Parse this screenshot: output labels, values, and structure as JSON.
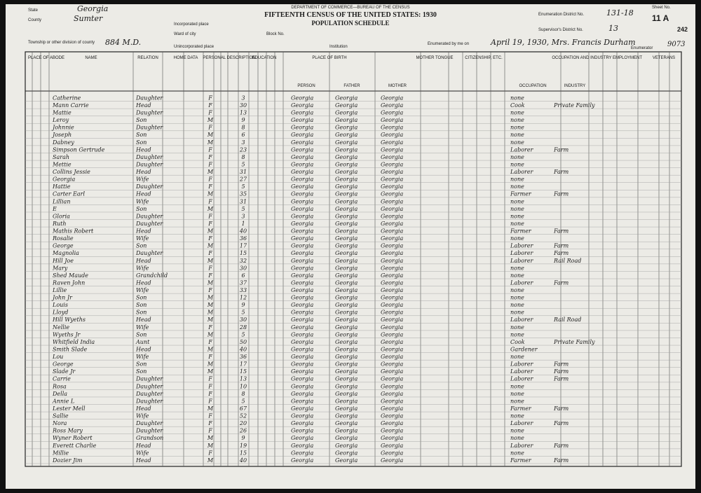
{
  "header": {
    "dept": "DEPARTMENT OF COMMERCE—BUREAU OF THE CENSUS",
    "title": "FIFTEENTH CENSUS OF THE UNITED STATES: 1930",
    "subtitle": "POPULATION SCHEDULE",
    "state_label": "State",
    "state": "Georgia",
    "county_label": "County",
    "county": "Sumter",
    "township_label": "Township or other division of county",
    "township": "884 M.D.",
    "incorporated_label": "Incorporated place",
    "ward_label": "Ward of city",
    "block_label": "Block No.",
    "unincorporated_label": "Unincorporated place",
    "institution_label": "Institution",
    "district_label": "Enumeration District No.",
    "district": "131-18",
    "supervisor_label": "Supervisor's District No.",
    "supervisor": "13",
    "sheet_label": "Sheet No.",
    "sheet": "11 A",
    "enumerated_label": "Enumerated by me on",
    "enumerated": "April 19, 1930, Mrs. Francis Durham",
    "enumerator_label": "Enumerator",
    "page": "242",
    "stamp": "9073"
  },
  "columns": {
    "abode": "PLACE OF ABODE",
    "name": "NAME",
    "relation": "RELATION",
    "home": "HOME DATA",
    "personal": "PERSONAL DESCRIPTION",
    "education": "EDUCATION",
    "birth": "PLACE OF BIRTH",
    "person": "PERSON",
    "father": "FATHER",
    "mother": "MOTHER",
    "tongue": "MOTHER TONGUE",
    "citizenship": "CITIZENSHIP, ETC.",
    "occupation": "OCCUPATION AND INDUSTRY",
    "occ": "OCCUPATION",
    "industry": "INDUSTRY",
    "employment": "EMPLOYMENT",
    "veterans": "VETERANS"
  },
  "rows": [
    [
      "Catherine",
      "Daughter",
      "F",
      "3",
      "Georgia",
      "Georgia",
      "Georgia",
      "none",
      ""
    ],
    [
      "Mann Carrie",
      "Head",
      "F",
      "30",
      "Georgia",
      "Georgia",
      "Georgia",
      "Cook",
      "Private Family"
    ],
    [
      "Mattie",
      "Daughter",
      "F",
      "13",
      "Georgia",
      "Georgia",
      "Georgia",
      "none",
      ""
    ],
    [
      "Leroy",
      "Son",
      "M",
      "9",
      "Georgia",
      "Georgia",
      "Georgia",
      "none",
      ""
    ],
    [
      "Johnnie",
      "Daughter",
      "F",
      "8",
      "Georgia",
      "Georgia",
      "Georgia",
      "none",
      ""
    ],
    [
      "Joseph",
      "Son",
      "M",
      "6",
      "Georgia",
      "Georgia",
      "Georgia",
      "none",
      ""
    ],
    [
      "Dabney",
      "Son",
      "M",
      "3",
      "Georgia",
      "Georgia",
      "Georgia",
      "none",
      ""
    ],
    [
      "Simpson Gertrude",
      "Head",
      "F",
      "23",
      "Georgia",
      "Georgia",
      "Georgia",
      "Laborer",
      "Farm"
    ],
    [
      "Sarah",
      "Daughter",
      "F",
      "8",
      "Georgia",
      "Georgia",
      "Georgia",
      "none",
      ""
    ],
    [
      "Mettie",
      "Daughter",
      "F",
      "5",
      "Georgia",
      "Georgia",
      "Georgia",
      "none",
      ""
    ],
    [
      "Collins Jessie",
      "Head",
      "M",
      "31",
      "Georgia",
      "Georgia",
      "Georgia",
      "Laborer",
      "Farm"
    ],
    [
      "Georgia",
      "Wife",
      "F",
      "27",
      "Georgia",
      "Georgia",
      "Georgia",
      "none",
      ""
    ],
    [
      "Hattie",
      "Daughter",
      "F",
      "5",
      "Georgia",
      "Georgia",
      "Georgia",
      "none",
      ""
    ],
    [
      "Carter Earl",
      "Head",
      "M",
      "35",
      "Georgia",
      "Georgia",
      "Georgia",
      "Farmer",
      "Farm"
    ],
    [
      "Lillian",
      "Wife",
      "F",
      "31",
      "Georgia",
      "Georgia",
      "Georgia",
      "none",
      ""
    ],
    [
      "E",
      "Son",
      "M",
      "5",
      "Georgia",
      "Georgia",
      "Georgia",
      "none",
      ""
    ],
    [
      "Gloria",
      "Daughter",
      "F",
      "3",
      "Georgia",
      "Georgia",
      "Georgia",
      "none",
      ""
    ],
    [
      "Ruth",
      "Daughter",
      "F",
      "1",
      "Georgia",
      "Georgia",
      "Georgia",
      "none",
      ""
    ],
    [
      "Mathis Robert",
      "Head",
      "M",
      "40",
      "Georgia",
      "Georgia",
      "Georgia",
      "Farmer",
      "Farm"
    ],
    [
      "Rosalie",
      "Wife",
      "F",
      "36",
      "Georgia",
      "Georgia",
      "Georgia",
      "none",
      ""
    ],
    [
      "George",
      "Son",
      "M",
      "17",
      "Georgia",
      "Georgia",
      "Georgia",
      "Laborer",
      "Farm"
    ],
    [
      "Magnolia",
      "Daughter",
      "F",
      "15",
      "Georgia",
      "Georgia",
      "Georgia",
      "Laborer",
      "Farm"
    ],
    [
      "Hill Joe",
      "Head",
      "M",
      "32",
      "Georgia",
      "Georgia",
      "Georgia",
      "Laborer",
      "Rail Road"
    ],
    [
      "Mary",
      "Wife",
      "F",
      "30",
      "Georgia",
      "Georgia",
      "Georgia",
      "none",
      ""
    ],
    [
      "Shed Maude",
      "Grandchild",
      "F",
      "6",
      "Georgia",
      "Georgia",
      "Georgia",
      "none",
      ""
    ],
    [
      "Raven John",
      "Head",
      "M",
      "37",
      "Georgia",
      "Georgia",
      "Georgia",
      "Laborer",
      "Farm"
    ],
    [
      "Lillie",
      "Wife",
      "F",
      "33",
      "Georgia",
      "Georgia",
      "Georgia",
      "none",
      ""
    ],
    [
      "John Jr",
      "Son",
      "M",
      "12",
      "Georgia",
      "Georgia",
      "Georgia",
      "none",
      ""
    ],
    [
      "Louis",
      "Son",
      "M",
      "9",
      "Georgia",
      "Georgia",
      "Georgia",
      "none",
      ""
    ],
    [
      "Lloyd",
      "Son",
      "M",
      "5",
      "Georgia",
      "Georgia",
      "Georgia",
      "none",
      ""
    ],
    [
      "Hill Wyeths",
      "Head",
      "M",
      "30",
      "Georgia",
      "Georgia",
      "Georgia",
      "Laborer",
      "Rail Road"
    ],
    [
      "Nellie",
      "Wife",
      "F",
      "28",
      "Georgia",
      "Georgia",
      "Georgia",
      "none",
      ""
    ],
    [
      "Wyeths Jr",
      "Son",
      "M",
      "5",
      "Georgia",
      "Georgia",
      "Georgia",
      "none",
      ""
    ],
    [
      "Whitfield India",
      "Aunt",
      "F",
      "50",
      "Georgia",
      "Georgia",
      "Georgia",
      "Cook",
      "Private Family"
    ],
    [
      "Smith Slade",
      "Head",
      "M",
      "40",
      "Georgia",
      "Georgia",
      "Georgia",
      "Gardener",
      ""
    ],
    [
      "Lou",
      "Wife",
      "F",
      "36",
      "Georgia",
      "Georgia",
      "Georgia",
      "none",
      ""
    ],
    [
      "George",
      "Son",
      "M",
      "17",
      "Georgia",
      "Georgia",
      "Georgia",
      "Laborer",
      "Farm"
    ],
    [
      "Slade Jr",
      "Son",
      "M",
      "15",
      "Georgia",
      "Georgia",
      "Georgia",
      "Laborer",
      "Farm"
    ],
    [
      "Carrie",
      "Daughter",
      "F",
      "13",
      "Georgia",
      "Georgia",
      "Georgia",
      "Laborer",
      "Farm"
    ],
    [
      "Rosa",
      "Daughter",
      "F",
      "10",
      "Georgia",
      "Georgia",
      "Georgia",
      "none",
      ""
    ],
    [
      "Della",
      "Daughter",
      "F",
      "8",
      "Georgia",
      "Georgia",
      "Georgia",
      "none",
      ""
    ],
    [
      "Annie L",
      "Daughter",
      "F",
      "5",
      "Georgia",
      "Georgia",
      "Georgia",
      "none",
      ""
    ],
    [
      "Lester Mell",
      "Head",
      "M",
      "67",
      "Georgia",
      "Georgia",
      "Georgia",
      "Farmer",
      "Farm"
    ],
    [
      "Sallie",
      "Wife",
      "F",
      "52",
      "Georgia",
      "Georgia",
      "Georgia",
      "none",
      ""
    ],
    [
      "Nora",
      "Daughter",
      "F",
      "20",
      "Georgia",
      "Georgia",
      "Georgia",
      "Laborer",
      "Farm"
    ],
    [
      "Ross Mary",
      "Daughter",
      "F",
      "26",
      "Georgia",
      "Georgia",
      "Georgia",
      "none",
      ""
    ],
    [
      "Wyner Robert",
      "Grandson",
      "M",
      "9",
      "Georgia",
      "Georgia",
      "Georgia",
      "none",
      ""
    ],
    [
      "Everett Charlie",
      "Head",
      "M",
      "19",
      "Georgia",
      "Georgia",
      "Georgia",
      "Laborer",
      "Farm"
    ],
    [
      "Millie",
      "Wife",
      "F",
      "15",
      "Georgia",
      "Georgia",
      "Georgia",
      "none",
      ""
    ],
    [
      "Dozier Jim",
      "Head",
      "M",
      "40",
      "Georgia",
      "Georgia",
      "Georgia",
      "Farmer",
      "Farm"
    ]
  ]
}
